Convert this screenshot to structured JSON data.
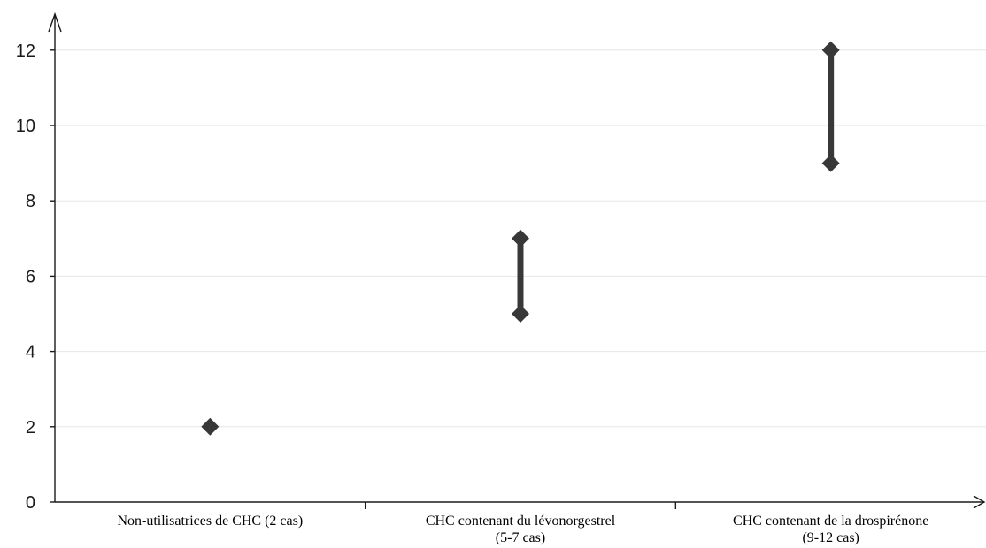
{
  "chart_data": {
    "type": "scatter",
    "title": "",
    "xlabel": "",
    "ylabel": "",
    "ylim": [
      0,
      13
    ],
    "yticks": [
      "0",
      "2",
      "4",
      "6",
      "8",
      "10",
      "12"
    ],
    "grid": true,
    "colors": {
      "marker": "#383838",
      "axis": "#1a1a1a",
      "grid": "#e6e6e6"
    },
    "categories": [
      {
        "lines": [
          "Non-utilisatrices de CHC (2 cas)"
        ],
        "low": 2,
        "high": 2
      },
      {
        "lines": [
          "CHC contenant du lévonorgestrel",
          "(5-7 cas)"
        ],
        "low": 5,
        "high": 7
      },
      {
        "lines": [
          "CHC contenant de la drospirénone",
          "(9-12 cas)"
        ],
        "low": 9,
        "high": 12
      }
    ]
  }
}
